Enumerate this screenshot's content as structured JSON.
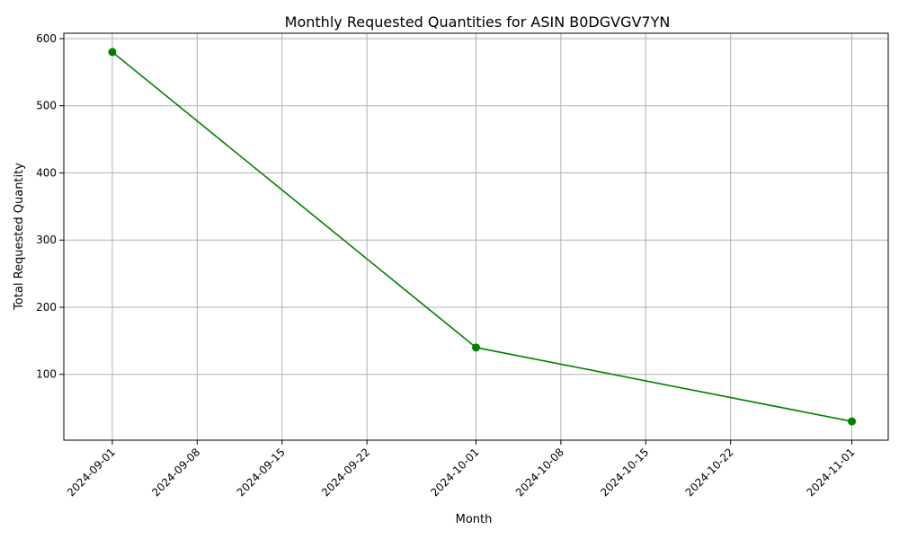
{
  "chart_data": {
    "type": "line",
    "title": "Monthly Requested Quantities for ASIN B0DGVGV7YN",
    "xlabel": "Month",
    "ylabel": "Total Requested Quantity",
    "x": [
      "2024-09-01",
      "2024-10-01",
      "2024-11-01"
    ],
    "series": [
      {
        "values": [
          580,
          140,
          30
        ],
        "color": "#008000",
        "marker": "circle"
      }
    ],
    "x_ticks": [
      "2024-09-01",
      "2024-09-08",
      "2024-09-15",
      "2024-09-22",
      "2024-10-01",
      "2024-10-08",
      "2024-10-15",
      "2024-10-22",
      "2024-11-01"
    ],
    "y_ticks": [
      100,
      200,
      300,
      400,
      500,
      600
    ],
    "xlim": [
      "2024-08-28",
      "2024-11-04"
    ],
    "ylim": [
      2,
      608
    ],
    "grid": true,
    "x_tick_rotation": 45
  }
}
